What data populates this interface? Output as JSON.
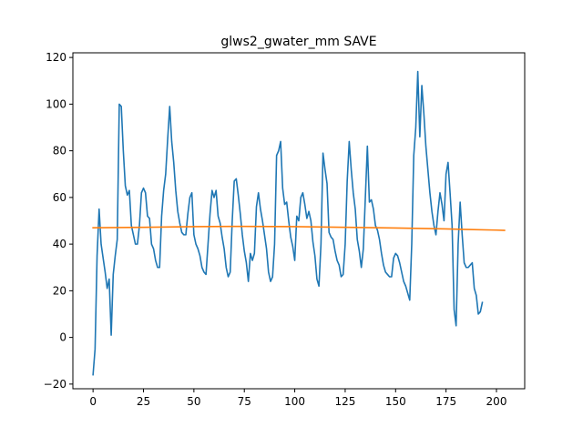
{
  "chart_data": {
    "type": "line",
    "title": "glws2_gwater_mm SAVE",
    "xlabel": "",
    "ylabel": "",
    "xlim": [
      -10,
      214
    ],
    "ylim": [
      -22,
      122
    ],
    "xticks": [
      0,
      25,
      50,
      75,
      100,
      125,
      150,
      175,
      200
    ],
    "yticks": [
      -20,
      0,
      20,
      40,
      60,
      80,
      100,
      120
    ],
    "grid": false,
    "legend": "none",
    "series": [
      {
        "color": "#1f77b4",
        "points": [
          [
            0,
            -16
          ],
          [
            1,
            -5
          ],
          [
            2,
            35
          ],
          [
            3,
            55
          ],
          [
            4,
            40
          ],
          [
            5,
            34
          ],
          [
            6,
            28
          ],
          [
            7,
            21
          ],
          [
            8,
            25
          ],
          [
            9,
            1
          ],
          [
            10,
            27
          ],
          [
            11,
            35
          ],
          [
            12,
            42
          ],
          [
            13,
            100
          ],
          [
            14,
            99
          ],
          [
            15,
            80
          ],
          [
            16,
            65
          ],
          [
            17,
            61
          ],
          [
            18,
            63
          ],
          [
            19,
            48
          ],
          [
            20,
            44
          ],
          [
            21,
            40
          ],
          [
            22,
            40
          ],
          [
            23,
            48
          ],
          [
            24,
            62
          ],
          [
            25,
            64
          ],
          [
            26,
            62
          ],
          [
            27,
            52
          ],
          [
            28,
            51
          ],
          [
            29,
            40
          ],
          [
            30,
            38
          ],
          [
            31,
            33
          ],
          [
            32,
            30
          ],
          [
            33,
            30
          ],
          [
            34,
            52
          ],
          [
            35,
            63
          ],
          [
            36,
            70
          ],
          [
            37,
            85
          ],
          [
            38,
            99
          ],
          [
            39,
            84
          ],
          [
            40,
            75
          ],
          [
            41,
            63
          ],
          [
            42,
            54
          ],
          [
            43,
            49
          ],
          [
            44,
            45
          ],
          [
            45,
            44
          ],
          [
            46,
            44
          ],
          [
            47,
            53
          ],
          [
            48,
            60
          ],
          [
            49,
            62
          ],
          [
            50,
            44
          ],
          [
            51,
            40
          ],
          [
            52,
            38
          ],
          [
            53,
            35
          ],
          [
            54,
            30
          ],
          [
            55,
            28
          ],
          [
            56,
            27
          ],
          [
            57,
            40
          ],
          [
            58,
            53
          ],
          [
            59,
            63
          ],
          [
            60,
            60
          ],
          [
            61,
            63
          ],
          [
            62,
            52
          ],
          [
            63,
            49
          ],
          [
            64,
            43
          ],
          [
            65,
            38
          ],
          [
            66,
            30
          ],
          [
            67,
            26
          ],
          [
            68,
            28
          ],
          [
            69,
            50
          ],
          [
            70,
            67
          ],
          [
            71,
            68
          ],
          [
            72,
            61
          ],
          [
            73,
            53
          ],
          [
            74,
            44
          ],
          [
            75,
            37
          ],
          [
            76,
            32
          ],
          [
            77,
            24
          ],
          [
            78,
            36
          ],
          [
            79,
            33
          ],
          [
            80,
            36
          ],
          [
            81,
            56
          ],
          [
            82,
            62
          ],
          [
            83,
            55
          ],
          [
            84,
            50
          ],
          [
            85,
            44
          ],
          [
            86,
            38
          ],
          [
            87,
            28
          ],
          [
            88,
            24
          ],
          [
            89,
            26
          ],
          [
            90,
            40
          ],
          [
            91,
            78
          ],
          [
            92,
            80
          ],
          [
            93,
            84
          ],
          [
            94,
            64
          ],
          [
            95,
            57
          ],
          [
            96,
            58
          ],
          [
            97,
            50
          ],
          [
            98,
            43
          ],
          [
            99,
            39
          ],
          [
            100,
            33
          ],
          [
            101,
            52
          ],
          [
            102,
            50
          ],
          [
            103,
            60
          ],
          [
            104,
            62
          ],
          [
            105,
            57
          ],
          [
            106,
            51
          ],
          [
            107,
            54
          ],
          [
            108,
            50
          ],
          [
            109,
            41
          ],
          [
            110,
            35
          ],
          [
            111,
            25
          ],
          [
            112,
            22
          ],
          [
            113,
            40
          ],
          [
            114,
            79
          ],
          [
            115,
            72
          ],
          [
            116,
            66
          ],
          [
            117,
            45
          ],
          [
            118,
            43
          ],
          [
            119,
            42
          ],
          [
            120,
            37
          ],
          [
            121,
            33
          ],
          [
            122,
            31
          ],
          [
            123,
            26
          ],
          [
            124,
            27
          ],
          [
            125,
            40
          ],
          [
            126,
            67
          ],
          [
            127,
            84
          ],
          [
            128,
            72
          ],
          [
            129,
            62
          ],
          [
            130,
            55
          ],
          [
            131,
            42
          ],
          [
            132,
            37
          ],
          [
            133,
            30
          ],
          [
            134,
            38
          ],
          [
            135,
            60
          ],
          [
            136,
            82
          ],
          [
            137,
            58
          ],
          [
            138,
            59
          ],
          [
            139,
            55
          ],
          [
            140,
            48
          ],
          [
            141,
            46
          ],
          [
            142,
            42
          ],
          [
            143,
            36
          ],
          [
            144,
            31
          ],
          [
            145,
            28
          ],
          [
            146,
            27
          ],
          [
            147,
            26
          ],
          [
            148,
            26
          ],
          [
            149,
            34
          ],
          [
            150,
            36
          ],
          [
            151,
            35
          ],
          [
            152,
            32
          ],
          [
            153,
            28
          ],
          [
            154,
            24
          ],
          [
            155,
            22
          ],
          [
            156,
            19
          ],
          [
            157,
            16
          ],
          [
            158,
            40
          ],
          [
            159,
            78
          ],
          [
            160,
            90
          ],
          [
            161,
            114
          ],
          [
            162,
            86
          ],
          [
            163,
            108
          ],
          [
            164,
            96
          ],
          [
            165,
            82
          ],
          [
            166,
            72
          ],
          [
            167,
            62
          ],
          [
            168,
            54
          ],
          [
            169,
            48
          ],
          [
            170,
            44
          ],
          [
            171,
            54
          ],
          [
            172,
            62
          ],
          [
            173,
            57
          ],
          [
            174,
            50
          ],
          [
            175,
            70
          ],
          [
            176,
            75
          ],
          [
            177,
            62
          ],
          [
            178,
            48
          ],
          [
            179,
            12
          ],
          [
            180,
            5
          ],
          [
            181,
            40
          ],
          [
            182,
            58
          ],
          [
            183,
            44
          ],
          [
            184,
            32
          ],
          [
            185,
            30
          ],
          [
            186,
            30
          ],
          [
            187,
            31
          ],
          [
            188,
            32
          ],
          [
            189,
            21
          ],
          [
            190,
            18
          ],
          [
            191,
            10
          ],
          [
            192,
            11
          ],
          [
            193,
            15
          ]
        ]
      },
      {
        "color": "#ff7f0e",
        "points": [
          [
            0,
            47.0
          ],
          [
            25,
            47.2
          ],
          [
            50,
            47.5
          ],
          [
            75,
            47.6
          ],
          [
            100,
            47.5
          ],
          [
            125,
            47.2
          ],
          [
            150,
            46.9
          ],
          [
            175,
            46.5
          ],
          [
            200,
            46.0
          ],
          [
            204,
            45.9
          ]
        ]
      }
    ]
  }
}
